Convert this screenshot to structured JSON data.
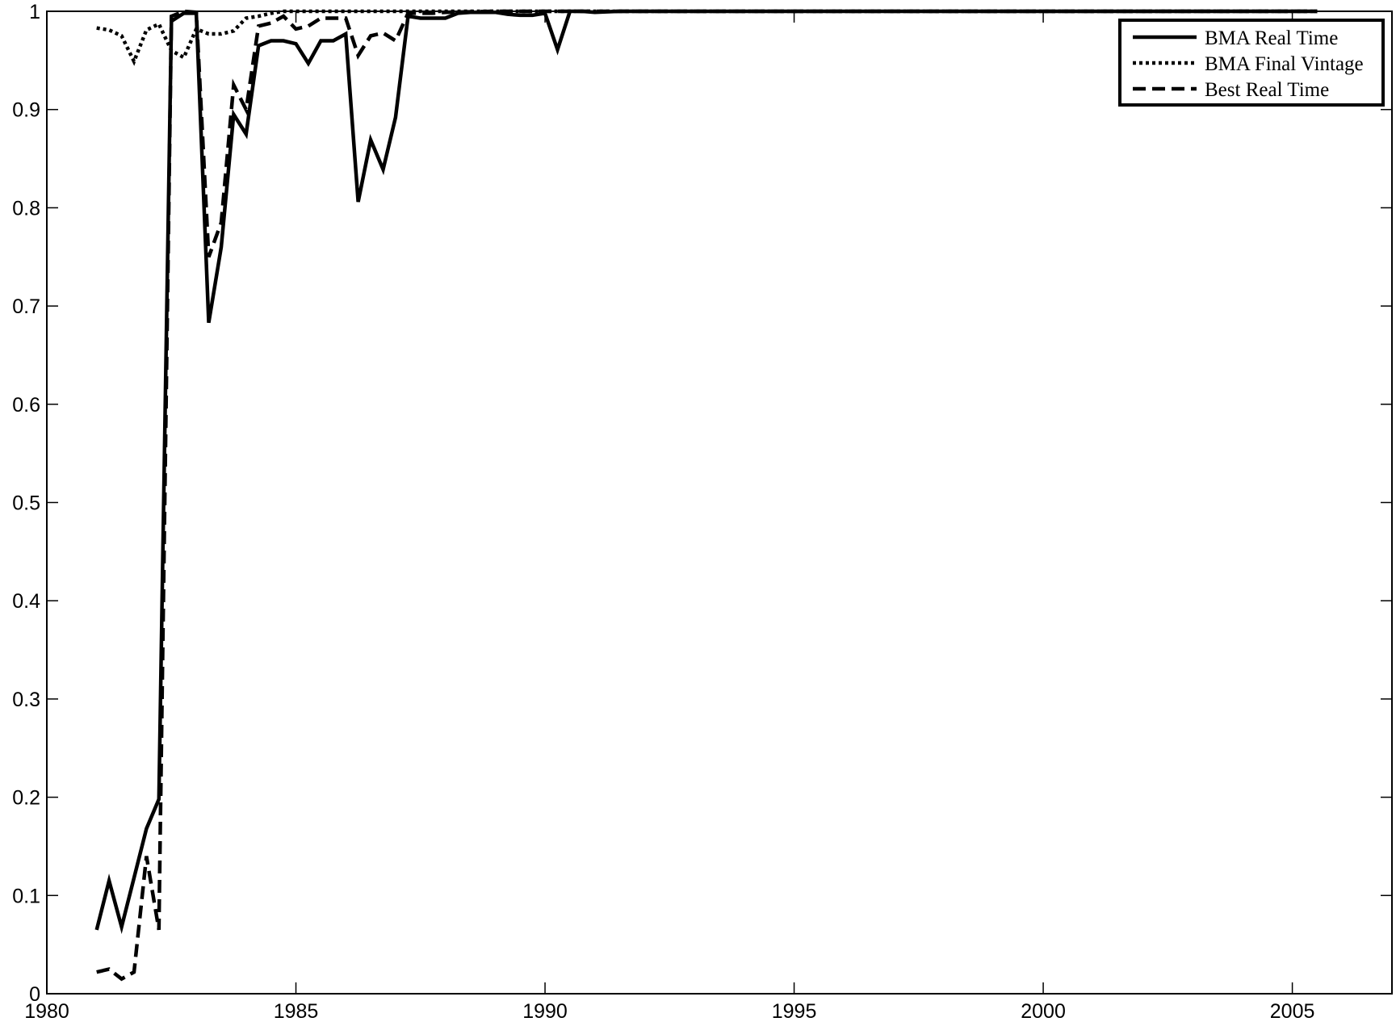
{
  "chart_data": {
    "type": "line",
    "title": "",
    "xlabel": "",
    "ylabel": "",
    "xlim": [
      1980,
      2007
    ],
    "ylim": [
      0,
      1
    ],
    "xticks": [
      "1980",
      "1985",
      "1990",
      "1995",
      "2000",
      "2005"
    ],
    "yticks": [
      "0",
      "0.1",
      "0.2",
      "0.3",
      "0.4",
      "0.5",
      "0.6",
      "0.7",
      "0.8",
      "0.9",
      "1"
    ],
    "grid": false,
    "legend_position": "top-right",
    "series": [
      {
        "name": "BMA Real Time",
        "style": "solid",
        "color": "#000000",
        "x": [
          1981.0,
          1981.25,
          1981.5,
          1981.75,
          1982.0,
          1982.25,
          1982.5,
          1982.75,
          1983.0,
          1983.25,
          1983.5,
          1983.75,
          1984.0,
          1984.25,
          1984.5,
          1984.75,
          1985.0,
          1985.25,
          1985.5,
          1985.75,
          1986.0,
          1986.25,
          1986.5,
          1986.75,
          1987.0,
          1987.25,
          1987.5,
          1987.75,
          1988.0,
          1988.25,
          1988.5,
          1988.75,
          1989.0,
          1989.25,
          1989.5,
          1989.75,
          1990.0,
          1990.25,
          1990.5,
          1990.75,
          1991.0,
          1991.5,
          1992.0,
          1993.0,
          1995.0,
          2000.0,
          2005.5
        ],
        "y": [
          0.065,
          0.115,
          0.068,
          0.118,
          0.168,
          0.198,
          0.99,
          0.998,
          0.998,
          0.683,
          0.76,
          0.895,
          0.875,
          0.965,
          0.97,
          0.97,
          0.967,
          0.947,
          0.97,
          0.97,
          0.977,
          0.806,
          0.869,
          0.839,
          0.892,
          0.995,
          0.993,
          0.993,
          0.993,
          0.998,
          0.999,
          0.999,
          0.999,
          0.997,
          0.996,
          0.996,
          0.998,
          0.961,
          1.0,
          1.0,
          0.999,
          1.0,
          1.0,
          1.0,
          1.0,
          1.0,
          1.0
        ]
      },
      {
        "name": "BMA Final Vintage",
        "style": "dotted",
        "color": "#000000",
        "x": [
          1981.0,
          1981.25,
          1981.5,
          1981.75,
          1982.0,
          1982.25,
          1982.5,
          1982.75,
          1983.0,
          1983.25,
          1983.5,
          1983.75,
          1984.0,
          1984.25,
          1984.5,
          1984.75,
          1985.0,
          1986.0,
          1987.0,
          1988.0,
          1989.0,
          1990.0,
          1991.0,
          1995.0,
          2000.0,
          2005.5
        ],
        "y": [
          0.983,
          0.981,
          0.975,
          0.949,
          0.981,
          0.987,
          0.96,
          0.953,
          0.982,
          0.977,
          0.977,
          0.98,
          0.993,
          0.995,
          0.998,
          1.0,
          1.0,
          1.0,
          1.0,
          1.0,
          1.0,
          1.0,
          1.0,
          1.0,
          1.0,
          1.0
        ]
      },
      {
        "name": "Best Real Time",
        "style": "dashed",
        "color": "#000000",
        "x": [
          1981.0,
          1981.25,
          1981.5,
          1981.75,
          1982.0,
          1982.25,
          1982.5,
          1982.75,
          1983.0,
          1983.25,
          1983.5,
          1983.75,
          1984.0,
          1984.25,
          1984.5,
          1984.75,
          1985.0,
          1985.25,
          1985.5,
          1985.75,
          1986.0,
          1986.25,
          1986.5,
          1986.75,
          1987.0,
          1987.25,
          1987.5,
          1987.75,
          1988.0,
          1989.0,
          1990.0,
          1991.0,
          1995.0,
          2000.0,
          2005.5
        ],
        "y": [
          0.022,
          0.025,
          0.015,
          0.022,
          0.14,
          0.065,
          0.995,
          1.0,
          0.999,
          0.75,
          0.785,
          0.925,
          0.9,
          0.985,
          0.988,
          0.995,
          0.982,
          0.985,
          0.993,
          0.993,
          0.993,
          0.955,
          0.975,
          0.978,
          0.97,
          0.998,
          0.998,
          0.998,
          0.999,
          1.0,
          1.0,
          1.0,
          1.0,
          1.0,
          1.0
        ]
      }
    ]
  }
}
